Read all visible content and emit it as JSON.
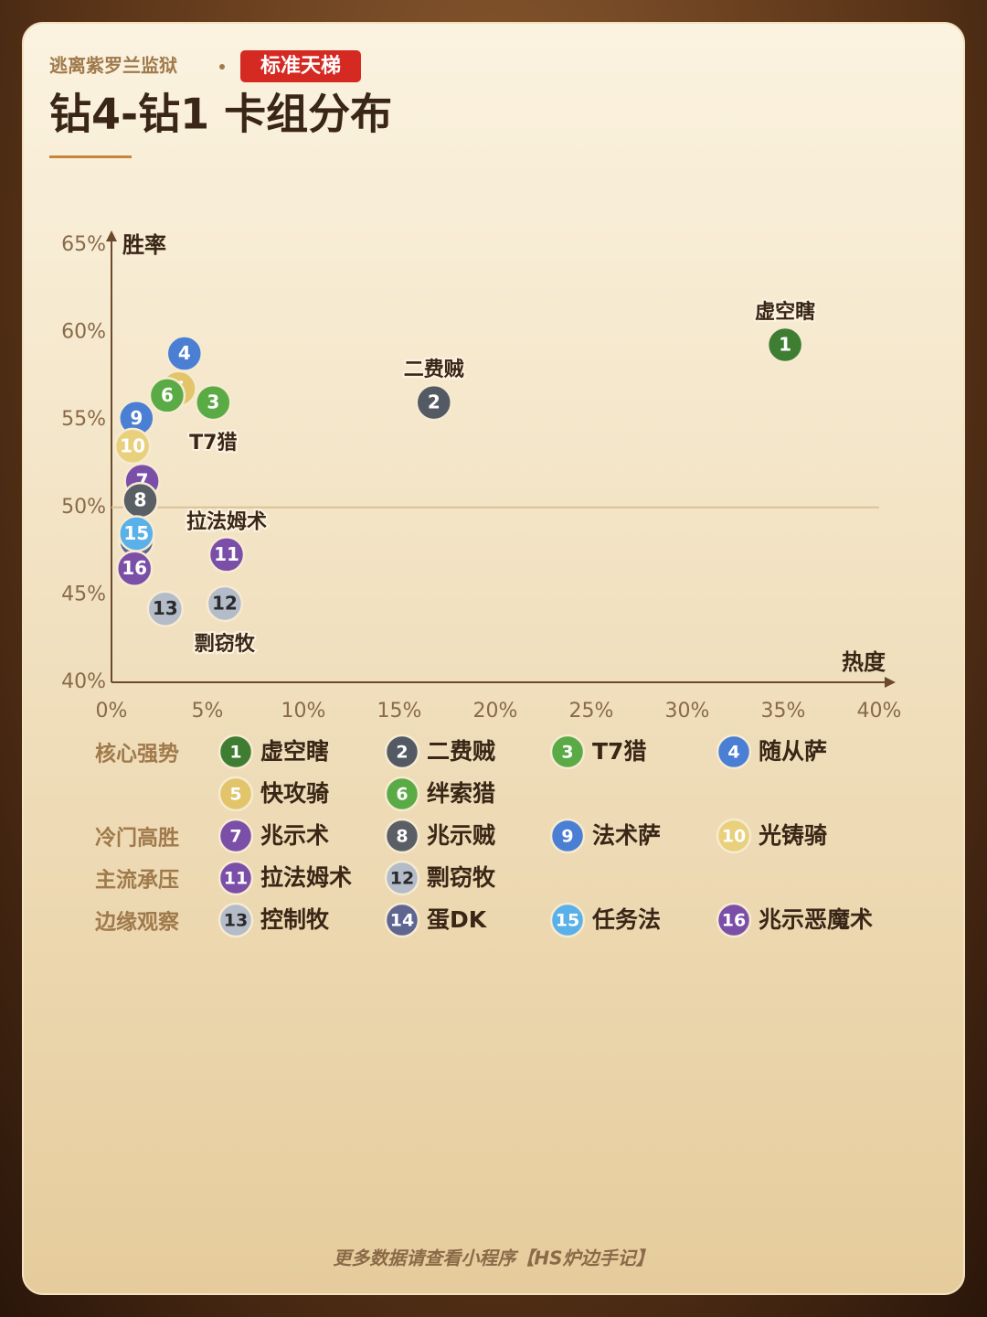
{
  "chart_data": {
    "type": "scatter",
    "source": "逃离紫罗兰监狱",
    "badge": "标准天梯",
    "title": "钻4-钻1 卡组分布",
    "x_label": "热度",
    "y_label": "胜率",
    "xlim": [
      0,
      40
    ],
    "xticks": [
      {
        "value": 0,
        "label": "0%"
      },
      {
        "value": 5,
        "label": "5%"
      },
      {
        "value": 10,
        "label": "10%"
      },
      {
        "value": 15,
        "label": "15%"
      },
      {
        "value": 20,
        "label": "20%"
      },
      {
        "value": 25,
        "label": "25%"
      },
      {
        "value": 30,
        "label": "30%"
      },
      {
        "value": 35,
        "label": "35%"
      },
      {
        "value": 40,
        "label": "40%"
      }
    ],
    "ylim": [
      40,
      65
    ],
    "yticks": [
      {
        "value": 40,
        "label": "40%"
      },
      {
        "value": 45,
        "label": "45%"
      },
      {
        "value": 50,
        "label": "50%"
      },
      {
        "value": 55,
        "label": "55%"
      },
      {
        "value": 60,
        "label": "60%"
      },
      {
        "value": 65,
        "label": "65%"
      }
    ],
    "reference_line": 50,
    "series": [
      {
        "name": "核心强势",
        "points": [
          {
            "id": 1,
            "name": "虚空瞎",
            "x": 35.1,
            "y": 59.3,
            "color": "#3f7d33",
            "label_position": "above"
          },
          {
            "id": 2,
            "name": "二费贼",
            "x": 16.8,
            "y": 56.0,
            "color": "#545a63",
            "label_position": "above"
          },
          {
            "id": 3,
            "name": "T7猎",
            "x": 5.3,
            "y": 56.0,
            "color": "#5aab45",
            "label_position": "below"
          },
          {
            "id": 4,
            "name": "随从萨",
            "x": 3.8,
            "y": 58.8,
            "color": "#4a7fd4"
          },
          {
            "id": 5,
            "name": "快攻骑",
            "x": 3.5,
            "y": 56.8,
            "color": "#e2c46a"
          },
          {
            "id": 6,
            "name": "绊索猎",
            "x": 2.9,
            "y": 56.4,
            "color": "#5aab45"
          }
        ]
      },
      {
        "name": "冷门高胜",
        "points": [
          {
            "id": 7,
            "name": "兆示术",
            "x": 1.6,
            "y": 51.5,
            "color": "#7b4ea8"
          },
          {
            "id": 8,
            "name": "兆示贼",
            "x": 1.5,
            "y": 50.4,
            "color": "#5a5f66"
          },
          {
            "id": 9,
            "name": "法术萨",
            "x": 1.3,
            "y": 55.1,
            "color": "#4a7fd4"
          },
          {
            "id": 10,
            "name": "光铸骑",
            "x": 1.1,
            "y": 53.5,
            "color": "#e8d07c"
          }
        ]
      },
      {
        "name": "主流承压",
        "points": [
          {
            "id": 11,
            "name": "拉法姆术",
            "x": 6.0,
            "y": 47.3,
            "color": "#7b4ea8",
            "label_position": "above"
          },
          {
            "id": 12,
            "name": "剽窃牧",
            "x": 5.9,
            "y": 44.5,
            "color": "#b3bcc8",
            "label_position": "below"
          }
        ]
      },
      {
        "name": "边缘观察",
        "points": [
          {
            "id": 13,
            "name": "控制牧",
            "x": 2.8,
            "y": 44.2,
            "color": "#b3bcc8"
          },
          {
            "id": 14,
            "name": "蛋DK",
            "x": 1.3,
            "y": 48.1,
            "color": "#5e6591"
          },
          {
            "id": 15,
            "name": "任务法",
            "x": 1.3,
            "y": 48.5,
            "color": "#5ab0e8"
          },
          {
            "id": 16,
            "name": "兆示恶魔术",
            "x": 1.2,
            "y": 46.5,
            "color": "#7b4ea8"
          }
        ]
      }
    ],
    "footer": "更多数据请查看小程序【HS炉边手记】"
  }
}
